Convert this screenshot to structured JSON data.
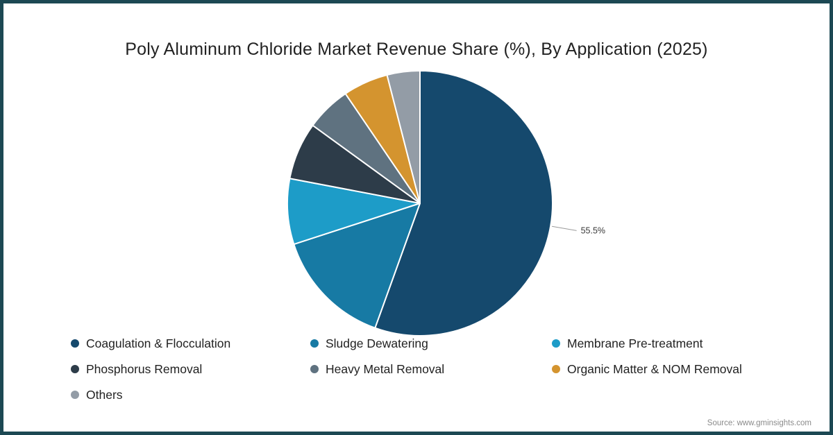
{
  "page": {
    "title": "Poly Aluminum Chloride Market Revenue Share (%), By Application (2025)",
    "source": "Source: www.gminsights.com"
  },
  "chart_data": {
    "type": "pie",
    "title": "Poly Aluminum Chloride Market Revenue Share (%), By Application (2025)",
    "legend_position": "bottom-left",
    "segments": [
      {
        "label": "Coagulation & Flocculation",
        "value": 55.5,
        "color": "#15496d"
      },
      {
        "label": "Sludge Dewatering",
        "value": 14.5,
        "color": "#177aa4"
      },
      {
        "label": "Membrane Pre-treatment",
        "value": 8.0,
        "color": "#1d9cc8"
      },
      {
        "label": "Phosphorus Removal",
        "value": 7.0,
        "color": "#2d3c49"
      },
      {
        "label": "Heavy Metal Removal",
        "value": 5.5,
        "color": "#5f7280"
      },
      {
        "label": "Organic Matter & NOM Removal",
        "value": 5.5,
        "color": "#d4942f"
      },
      {
        "label": "Others",
        "value": 4.0,
        "color": "#939ca6"
      }
    ],
    "annotation": {
      "text": "55.5%",
      "segment": "Coagulation & Flocculation"
    }
  }
}
